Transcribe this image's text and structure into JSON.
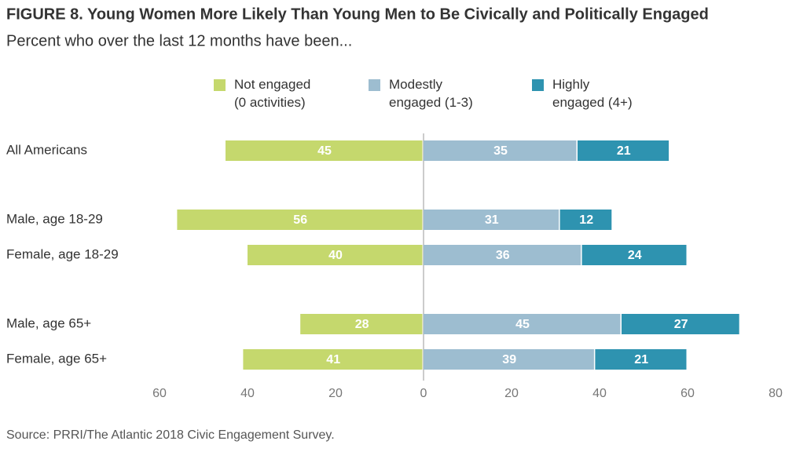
{
  "chart_data": {
    "type": "diverging_bar",
    "title": "FIGURE 8. Young Women More Likely Than Young Men to Be Civically and Politically Engaged",
    "subtitle": "Percent who over the last 12 months have been...",
    "source": "Source: PRRI/The Atlantic 2018 Civic Engagement Survey.",
    "categories": [
      "All Americans",
      "Male, age 18-29",
      "Female, age 18-29",
      "Male, age 65+",
      "Female, age 65+"
    ],
    "series": [
      {
        "name": "Not engaged\n(0 activities)",
        "color": "#c5d86d",
        "side": "left",
        "values": [
          45,
          56,
          40,
          28,
          41
        ]
      },
      {
        "name": "Modestly\nengaged (1-3)",
        "color": "#9dbdd0",
        "side": "right",
        "values": [
          35,
          31,
          36,
          45,
          39
        ]
      },
      {
        "name": "Highly\nengaged (4+)",
        "color": "#2e93b0",
        "side": "right",
        "values": [
          21,
          12,
          24,
          27,
          21
        ]
      }
    ],
    "xlim": [
      -60,
      80
    ],
    "xticks": [
      {
        "value": -60,
        "label": "60"
      },
      {
        "value": -40,
        "label": "40"
      },
      {
        "value": -20,
        "label": "20"
      },
      0,
      20,
      40,
      60,
      80
    ]
  }
}
